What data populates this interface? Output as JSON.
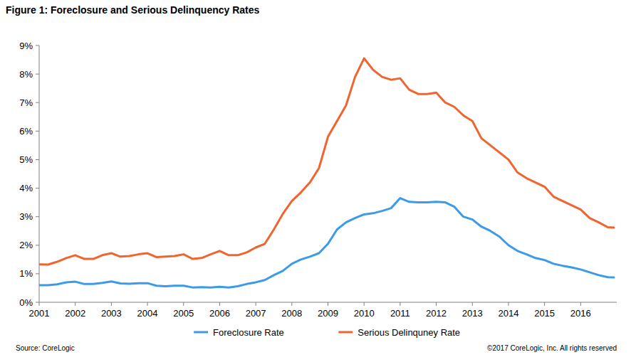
{
  "chart_data": {
    "type": "line",
    "title": "Figure 1: Foreclosure and Serious Delinquency Rates",
    "annotations": [
      "Source: CoreLogic",
      "©2017 CoreLogic, Inc.  All rights reserved"
    ],
    "x": [
      2001,
      2001.25,
      2001.5,
      2001.75,
      2002,
      2002.25,
      2002.5,
      2002.75,
      2003,
      2003.25,
      2003.5,
      2003.75,
      2004,
      2004.25,
      2004.5,
      2004.75,
      2005,
      2005.25,
      2005.5,
      2005.75,
      2006,
      2006.25,
      2006.5,
      2006.75,
      2007,
      2007.25,
      2007.5,
      2007.75,
      2008,
      2008.25,
      2008.5,
      2008.75,
      2009,
      2009.25,
      2009.5,
      2009.75,
      2010,
      2010.25,
      2010.5,
      2010.75,
      2011,
      2011.25,
      2011.5,
      2011.75,
      2012,
      2012.25,
      2012.5,
      2012.75,
      2013,
      2013.25,
      2013.5,
      2013.75,
      2014,
      2014.25,
      2014.5,
      2014.75,
      2015,
      2015.25,
      2015.5,
      2015.75,
      2016,
      2016.25,
      2016.5,
      2016.75,
      2016.92
    ],
    "series": [
      {
        "name": "Foreclosure Rate",
        "color": "#3b9be8",
        "values": [
          0.6,
          0.6,
          0.63,
          0.7,
          0.72,
          0.64,
          0.64,
          0.68,
          0.73,
          0.66,
          0.65,
          0.67,
          0.67,
          0.58,
          0.56,
          0.58,
          0.58,
          0.52,
          0.53,
          0.52,
          0.54,
          0.52,
          0.56,
          0.64,
          0.7,
          0.78,
          0.95,
          1.1,
          1.35,
          1.5,
          1.6,
          1.72,
          2.05,
          2.55,
          2.8,
          2.95,
          3.08,
          3.12,
          3.2,
          3.3,
          3.65,
          3.52,
          3.5,
          3.5,
          3.52,
          3.5,
          3.35,
          3.0,
          2.9,
          2.65,
          2.5,
          2.3,
          2.0,
          1.8,
          1.68,
          1.55,
          1.48,
          1.35,
          1.28,
          1.22,
          1.15,
          1.05,
          0.95,
          0.88,
          0.87
        ]
      },
      {
        "name": "Serious Delinquney Rate",
        "color": "#f0642e",
        "values": [
          1.33,
          1.32,
          1.42,
          1.55,
          1.65,
          1.52,
          1.52,
          1.65,
          1.72,
          1.6,
          1.62,
          1.68,
          1.72,
          1.58,
          1.6,
          1.62,
          1.68,
          1.52,
          1.55,
          1.68,
          1.8,
          1.65,
          1.65,
          1.75,
          1.92,
          2.05,
          2.55,
          3.1,
          3.55,
          3.85,
          4.2,
          4.7,
          5.8,
          6.35,
          6.9,
          7.9,
          8.55,
          8.15,
          7.9,
          7.8,
          7.85,
          7.45,
          7.3,
          7.3,
          7.35,
          7.0,
          6.85,
          6.55,
          6.35,
          5.75,
          5.5,
          5.25,
          5.0,
          4.55,
          4.35,
          4.2,
          4.05,
          3.7,
          3.55,
          3.4,
          3.25,
          2.95,
          2.8,
          2.63,
          2.62
        ]
      }
    ],
    "xlim": [
      2001,
      2017
    ],
    "xticks": [
      2001,
      2002,
      2003,
      2004,
      2005,
      2006,
      2007,
      2008,
      2009,
      2010,
      2011,
      2012,
      2013,
      2014,
      2015,
      2016
    ],
    "ylim": [
      0,
      9
    ],
    "yticks": [
      {
        "value": 0,
        "label": "0%"
      },
      {
        "value": 1,
        "label": "1%"
      },
      {
        "value": 2,
        "label": "2%"
      },
      {
        "value": 3,
        "label": "3%"
      },
      {
        "value": 4,
        "label": "4%"
      },
      {
        "value": 5,
        "label": "5%"
      },
      {
        "value": 6,
        "label": "6%"
      },
      {
        "value": 7,
        "label": "7%"
      },
      {
        "value": 8,
        "label": "8%"
      },
      {
        "value": 9,
        "label": "9%"
      }
    ],
    "grid": false,
    "legend": "bottom"
  }
}
